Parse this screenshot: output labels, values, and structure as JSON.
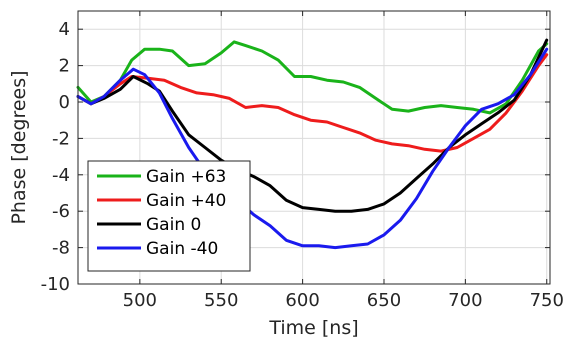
{
  "chart_data": {
    "type": "line",
    "xlabel": "Time [ns]",
    "ylabel": "Phase [degrees]",
    "xlim": [
      462,
      752
    ],
    "ylim": [
      -10,
      5
    ],
    "xticks": [
      500,
      550,
      600,
      650,
      700,
      750
    ],
    "yticks": [
      -10,
      -8,
      -6,
      -4,
      -2,
      0,
      2,
      4
    ],
    "grid": true,
    "legend_position": "bottom-left",
    "series": [
      {
        "name": "Gain +63",
        "color": "#1ab31a",
        "points": [
          [
            462,
            0.8
          ],
          [
            470,
            0.0
          ],
          [
            478,
            0.3
          ],
          [
            488,
            1.2
          ],
          [
            495,
            2.3
          ],
          [
            503,
            2.9
          ],
          [
            512,
            2.9
          ],
          [
            520,
            2.8
          ],
          [
            530,
            2.0
          ],
          [
            540,
            2.1
          ],
          [
            550,
            2.7
          ],
          [
            558,
            3.3
          ],
          [
            565,
            3.1
          ],
          [
            575,
            2.8
          ],
          [
            585,
            2.3
          ],
          [
            595,
            1.4
          ],
          [
            605,
            1.4
          ],
          [
            615,
            1.2
          ],
          [
            625,
            1.1
          ],
          [
            635,
            0.8
          ],
          [
            645,
            0.2
          ],
          [
            655,
            -0.4
          ],
          [
            665,
            -0.5
          ],
          [
            675,
            -0.3
          ],
          [
            685,
            -0.2
          ],
          [
            695,
            -0.3
          ],
          [
            705,
            -0.4
          ],
          [
            715,
            -0.6
          ],
          [
            725,
            -0.1
          ],
          [
            735,
            1.2
          ],
          [
            745,
            2.8
          ],
          [
            750,
            3.2
          ]
        ]
      },
      {
        "name": "Gain +40",
        "color": "#ee1c1c",
        "points": [
          [
            462,
            0.3
          ],
          [
            470,
            -0.1
          ],
          [
            478,
            0.3
          ],
          [
            488,
            1.0
          ],
          [
            495,
            1.4
          ],
          [
            505,
            1.3
          ],
          [
            515,
            1.2
          ],
          [
            525,
            0.8
          ],
          [
            535,
            0.5
          ],
          [
            545,
            0.4
          ],
          [
            555,
            0.2
          ],
          [
            565,
            -0.3
          ],
          [
            575,
            -0.2
          ],
          [
            585,
            -0.3
          ],
          [
            595,
            -0.7
          ],
          [
            605,
            -1.0
          ],
          [
            615,
            -1.1
          ],
          [
            625,
            -1.4
          ],
          [
            635,
            -1.7
          ],
          [
            645,
            -2.1
          ],
          [
            655,
            -2.3
          ],
          [
            665,
            -2.4
          ],
          [
            675,
            -2.6
          ],
          [
            685,
            -2.7
          ],
          [
            695,
            -2.5
          ],
          [
            705,
            -2.0
          ],
          [
            715,
            -1.5
          ],
          [
            725,
            -0.6
          ],
          [
            735,
            0.6
          ],
          [
            745,
            2.0
          ],
          [
            750,
            2.6
          ]
        ]
      },
      {
        "name": "Gain 0",
        "color": "#000000",
        "points": [
          [
            462,
            0.3
          ],
          [
            470,
            -0.1
          ],
          [
            478,
            0.2
          ],
          [
            488,
            0.7
          ],
          [
            496,
            1.4
          ],
          [
            505,
            1.0
          ],
          [
            512,
            0.6
          ],
          [
            520,
            -0.5
          ],
          [
            530,
            -1.8
          ],
          [
            540,
            -2.5
          ],
          [
            550,
            -3.2
          ],
          [
            560,
            -3.7
          ],
          [
            570,
            -4.1
          ],
          [
            580,
            -4.6
          ],
          [
            590,
            -5.4
          ],
          [
            600,
            -5.8
          ],
          [
            610,
            -5.9
          ],
          [
            620,
            -6.0
          ],
          [
            630,
            -6.0
          ],
          [
            640,
            -5.9
          ],
          [
            650,
            -5.6
          ],
          [
            660,
            -5.0
          ],
          [
            670,
            -4.2
          ],
          [
            680,
            -3.4
          ],
          [
            690,
            -2.5
          ],
          [
            700,
            -1.8
          ],
          [
            710,
            -1.2
          ],
          [
            720,
            -0.6
          ],
          [
            730,
            0.1
          ],
          [
            740,
            1.5
          ],
          [
            750,
            3.4
          ]
        ]
      },
      {
        "name": "Gain -40",
        "color": "#1a1aee",
        "points": [
          [
            462,
            0.3
          ],
          [
            470,
            -0.1
          ],
          [
            478,
            0.3
          ],
          [
            488,
            1.2
          ],
          [
            496,
            1.8
          ],
          [
            503,
            1.5
          ],
          [
            512,
            0.5
          ],
          [
            520,
            -0.9
          ],
          [
            530,
            -2.5
          ],
          [
            540,
            -3.8
          ],
          [
            550,
            -4.8
          ],
          [
            560,
            -5.4
          ],
          [
            570,
            -6.2
          ],
          [
            580,
            -6.8
          ],
          [
            590,
            -7.6
          ],
          [
            600,
            -7.9
          ],
          [
            610,
            -7.9
          ],
          [
            620,
            -8.0
          ],
          [
            630,
            -7.9
          ],
          [
            640,
            -7.8
          ],
          [
            650,
            -7.3
          ],
          [
            660,
            -6.5
          ],
          [
            670,
            -5.3
          ],
          [
            680,
            -3.8
          ],
          [
            690,
            -2.5
          ],
          [
            700,
            -1.3
          ],
          [
            710,
            -0.4
          ],
          [
            720,
            -0.1
          ],
          [
            730,
            0.4
          ],
          [
            740,
            1.5
          ],
          [
            750,
            2.9
          ]
        ]
      }
    ]
  }
}
